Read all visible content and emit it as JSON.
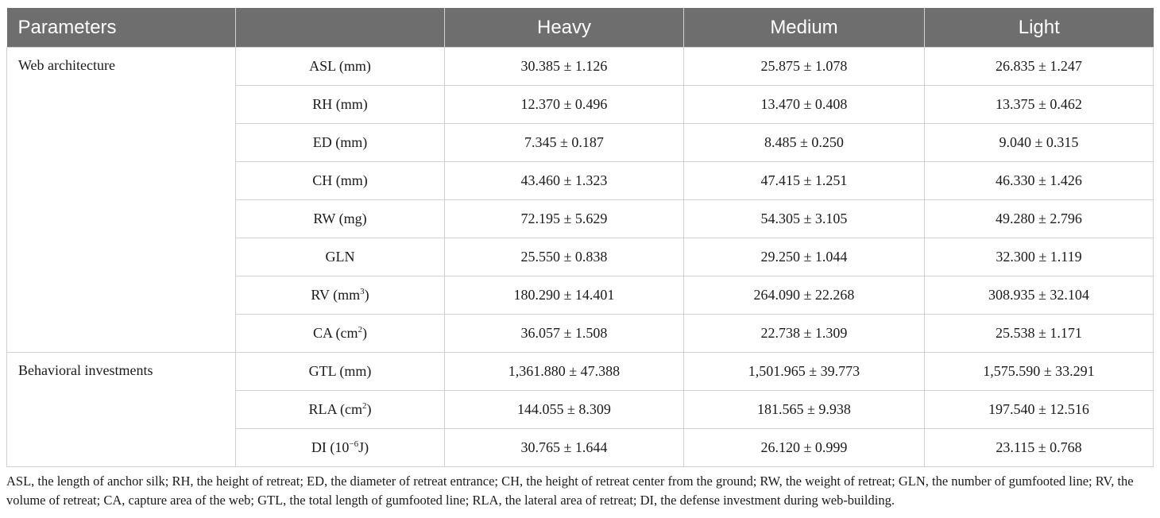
{
  "table": {
    "headers": [
      "Parameters",
      "",
      "Heavy",
      "Medium",
      "Light"
    ],
    "groups": [
      {
        "name": "Web architecture",
        "rows": [
          {
            "param": "ASL (mm)",
            "sup": "",
            "heavy": "30.385 ± 1.126",
            "medium": "25.875 ± 1.078",
            "light": "26.835 ± 1.247"
          },
          {
            "param": "RH (mm)",
            "sup": "",
            "heavy": "12.370 ± 0.496",
            "medium": "13.470 ± 0.408",
            "light": "13.375 ± 0.462"
          },
          {
            "param": "ED (mm)",
            "sup": "",
            "heavy": "7.345 ± 0.187",
            "medium": "8.485 ± 0.250",
            "light": "9.040 ± 0.315"
          },
          {
            "param": "CH (mm)",
            "sup": "",
            "heavy": "43.460 ± 1.323",
            "medium": "47.415 ± 1.251",
            "light": "46.330 ± 1.426"
          },
          {
            "param": "RW (mg)",
            "sup": "",
            "heavy": "72.195 ± 5.629",
            "medium": "54.305 ± 3.105",
            "light": "49.280 ± 2.796"
          },
          {
            "param": "GLN",
            "sup": "",
            "heavy": "25.550 ± 0.838",
            "medium": "29.250 ± 1.044",
            "light": "32.300 ± 1.119"
          },
          {
            "param": "RV (mm",
            "sup": "3",
            "suffix": ")",
            "heavy": "180.290 ± 14.401",
            "medium": "264.090 ± 22.268",
            "light": "308.935 ± 32.104"
          },
          {
            "param": "CA (cm",
            "sup": "2",
            "suffix": ")",
            "heavy": "36.057 ± 1.508",
            "medium": "22.738 ± 1.309",
            "light": "25.538 ± 1.171"
          }
        ]
      },
      {
        "name": "Behavioral investments",
        "rows": [
          {
            "param": "GTL (mm)",
            "sup": "",
            "heavy": "1,361.880 ± 47.388",
            "medium": "1,501.965 ± 39.773",
            "light": "1,575.590 ± 33.291"
          },
          {
            "param": "RLA (cm",
            "sup": "2",
            "suffix": ")",
            "heavy": "144.055 ± 8.309",
            "medium": "181.565 ± 9.938",
            "light": "197.540 ± 12.516"
          },
          {
            "param": "DI (10",
            "sup": "−6",
            "suffix": "J)",
            "heavy": "30.765 ± 1.644",
            "medium": "26.120 ± 0.999",
            "light": "23.115 ± 0.768"
          }
        ]
      }
    ]
  },
  "footnote": "ASL, the length of anchor silk; RH, the height of retreat; ED, the diameter of retreat entrance; CH, the height of retreat center from the ground; RW, the weight of retreat; GLN, the number of gumfooted line; RV, the volume of retreat; CA, capture area of the web; GTL, the total length of gumfooted line; RLA, the lateral area of retreat; DI, the defense investment during web-building."
}
